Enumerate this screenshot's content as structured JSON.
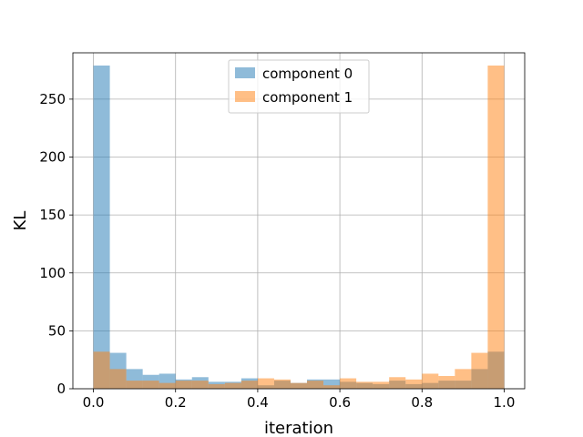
{
  "chart_data": {
    "type": "histogram",
    "title": "",
    "xlabel": "iteration",
    "ylabel": "KL",
    "xlim": [
      -0.05,
      1.05
    ],
    "ylim": [
      0,
      290
    ],
    "bin_width": 0.04,
    "bin_starts": [
      0.0,
      0.04,
      0.08,
      0.12,
      0.16,
      0.2,
      0.24,
      0.28,
      0.32,
      0.36,
      0.4,
      0.44,
      0.48,
      0.52,
      0.56,
      0.6,
      0.64,
      0.68,
      0.72,
      0.76,
      0.8,
      0.84,
      0.88,
      0.92,
      0.96
    ],
    "x_ticks": [
      "0.0",
      "0.2",
      "0.4",
      "0.6",
      "0.8",
      "1.0"
    ],
    "x_tick_values": [
      0.0,
      0.2,
      0.4,
      0.6,
      0.8,
      1.0
    ],
    "y_ticks": [
      "0",
      "50",
      "100",
      "150",
      "200",
      "250"
    ],
    "y_tick_values": [
      0,
      50,
      100,
      150,
      200,
      250
    ],
    "grid": true,
    "legend_position": "top-center",
    "series": [
      {
        "name": "component 0",
        "color": "#1f77b4",
        "values": [
          279,
          31,
          17,
          12,
          13,
          8,
          10,
          6,
          6,
          9,
          3,
          7,
          5,
          8,
          8,
          6,
          5,
          4,
          7,
          4,
          5,
          7,
          7,
          17,
          32
        ]
      },
      {
        "name": "component 1",
        "color": "#ff7f0e",
        "values": [
          32,
          17,
          7,
          7,
          5,
          7,
          7,
          4,
          5,
          7,
          9,
          8,
          5,
          7,
          3,
          9,
          6,
          6,
          10,
          8,
          13,
          11,
          17,
          31,
          279
        ]
      }
    ]
  }
}
